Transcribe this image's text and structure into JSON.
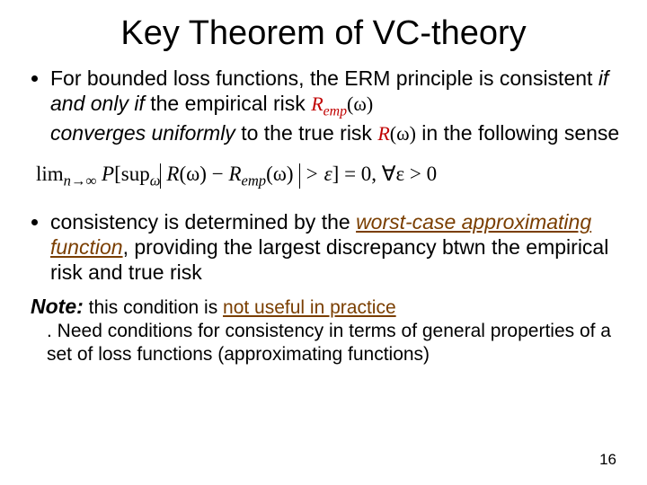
{
  "title": "Key Theorem of VC-theory",
  "bullet1": {
    "pre": "For bounded loss functions, the ERM principle is consistent ",
    "iff": "if and only if",
    "mid1": " the empirical risk ",
    "remp": "R",
    "remp_sub": "emp",
    "remp_arg": "(ω)",
    "conv": "converges uniformly",
    "mid2": " to the true risk ",
    "r": "R",
    "r_arg": "(ω)",
    "mid3": " in the following sense"
  },
  "equation": {
    "lim": "lim",
    "limsub": "n→∞",
    "P": "P",
    "lbr": "[",
    "sup": "sup",
    "supsub": "ω",
    "R": "R",
    "Rarg": "(ω)",
    "minus": " − ",
    "Remp": "R",
    "Remp_sub": "emp",
    "Remp_arg": "(ω)",
    "gte": " > ε",
    "rbr": "]",
    "rhs": " = 0, ∀ε > 0"
  },
  "bullet2": {
    "pre": "consistency is determined by the ",
    "wc": "worst-case approximating function",
    "rest": ", providing the largest discrepancy btwn the empirical risk and true risk"
  },
  "note": {
    "label": "Note:",
    "text1": " this condition is ",
    "nu": "not useful in practice",
    "text2": ". Need conditions for consistency in terms of general properties of a set of loss  functions (approximating functions)"
  },
  "pagenum": "16"
}
